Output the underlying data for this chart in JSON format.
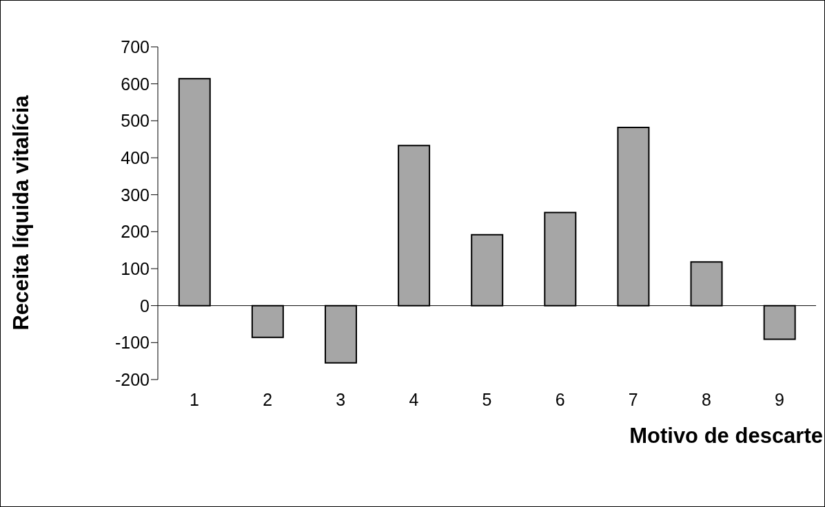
{
  "chart_data": {
    "type": "bar",
    "xlabel": "Motivo de descarte",
    "ylabel": "Receita líquida vitalícia",
    "categories": [
      "1",
      "2",
      "3",
      "4",
      "5",
      "6",
      "7",
      "8",
      "9"
    ],
    "values": [
      614,
      -86,
      -155,
      433,
      192,
      252,
      482,
      118,
      -91
    ],
    "color": "#a6a6a6",
    "ylim": [
      -200,
      700
    ],
    "yticks": [
      -200,
      -100,
      0,
      100,
      200,
      300,
      400,
      500,
      600,
      700
    ],
    "ref_lines": [
      {
        "axis": "y",
        "value": 0,
        "color": "#000000"
      }
    ],
    "grid": false
  }
}
